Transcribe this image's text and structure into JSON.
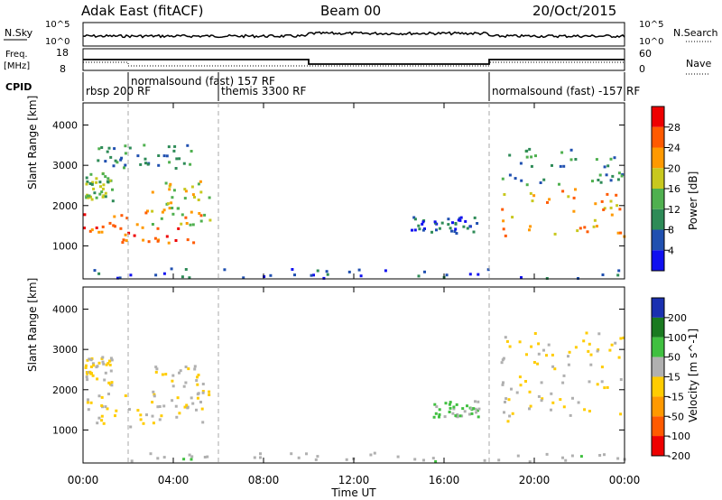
{
  "header": {
    "station": "Adak East (fitACF)",
    "beam": "Beam 00",
    "date": "20/Oct/2015"
  },
  "top_panels": {
    "nsky_label": "N.Sky",
    "nsearch_label": "N.Search",
    "nsky_ticks": [
      "10^5",
      "10^0"
    ],
    "nsky_right_ticks": [
      "10^5",
      "10^0"
    ],
    "freq_label_line1": "Freq.",
    "freq_label_line2": "[MHz]",
    "freq_ticks": [
      "18",
      "8"
    ],
    "nave_label": "Nave",
    "nave_ticks": [
      "60",
      "0"
    ],
    "cpid_label": "CPID",
    "cpid_segments": [
      {
        "start": 0,
        "label": "rbsp 200 RF"
      },
      {
        "start": 2,
        "label": "normalsound (fast) 157 RF"
      },
      {
        "start": 6,
        "label": "themis 3300 RF"
      },
      {
        "start": 18,
        "label": "normalsound (fast) -157 RF"
      }
    ]
  },
  "time_axis": {
    "label": "Time UT",
    "ticks": [
      "00:00",
      "04:00",
      "08:00",
      "12:00",
      "16:00",
      "20:00",
      "00:00"
    ]
  },
  "chart_data": [
    {
      "type": "heatmap",
      "title": "Power",
      "ylabel": "Slant Range [km]",
      "xlabel": "",
      "xlim": [
        0,
        24
      ],
      "ylim": [
        180,
        4550
      ],
      "yticks": [
        1000,
        2000,
        3000,
        4000
      ],
      "colorbar_label": "Power [dB]",
      "colorbar_ticks": [
        4,
        8,
        12,
        16,
        20,
        24,
        28
      ],
      "colorbar_range": [
        0,
        32
      ],
      "colors": [
        "#1010f0",
        "#2050b0",
        "#2e8b57",
        "#4fb04f",
        "#c8c81e",
        "#ff9900",
        "#ff5a00",
        "#ee0000"
      ],
      "echo_regions": [
        {
          "t": [
            0,
            5.3
          ],
          "r": [
            1050,
            1900
          ],
          "value": 26
        },
        {
          "t": [
            3.0,
            5.6
          ],
          "r": [
            1500,
            2600
          ],
          "value": 18
        },
        {
          "t": [
            0,
            1.3
          ],
          "r": [
            2100,
            2800
          ],
          "value": 14
        },
        {
          "t": [
            0.5,
            5.0
          ],
          "r": [
            2900,
            3500
          ],
          "value": 10
        },
        {
          "t": [
            18.5,
            24
          ],
          "r": [
            1200,
            2400
          ],
          "value": 22
        },
        {
          "t": [
            18.5,
            24
          ],
          "r": [
            2500,
            3400
          ],
          "value": 11
        },
        {
          "t": [
            14.5,
            17.5
          ],
          "r": [
            1300,
            1700
          ],
          "value": 7
        },
        {
          "t": [
            0,
            24
          ],
          "r": [
            180,
            420
          ],
          "value": 6
        }
      ]
    },
    {
      "type": "heatmap",
      "title": "Velocity",
      "ylabel": "Slant Range [km]",
      "xlabel": "Time UT",
      "xlim": [
        0,
        24
      ],
      "ylim": [
        180,
        4550
      ],
      "yticks": [
        1000,
        2000,
        3000,
        4000
      ],
      "colorbar_label": "Velocity [m s^-1]",
      "colorbar_ticks": [
        200,
        100,
        50,
        15,
        -15,
        -50,
        -100,
        -200
      ],
      "colorbar_range": [
        -250,
        250
      ],
      "colors": [
        "#1a30b0",
        "#1a7a20",
        "#40c040",
        "#b0b0b0",
        "#ffcc00",
        "#ff9900",
        "#ff5a00",
        "#ee0000"
      ],
      "echo_regions": [
        {
          "t": [
            0,
            5.3
          ],
          "r": [
            1050,
            1900
          ],
          "value": 0
        },
        {
          "t": [
            3.0,
            5.6
          ],
          "r": [
            1500,
            2600
          ],
          "value": 5
        },
        {
          "t": [
            0,
            1.3
          ],
          "r": [
            2100,
            2800
          ],
          "value": -5
        },
        {
          "t": [
            18.5,
            24
          ],
          "r": [
            1200,
            2400
          ],
          "value": 10
        },
        {
          "t": [
            18.5,
            24
          ],
          "r": [
            2500,
            3400
          ],
          "value": -10
        },
        {
          "t": [
            15.5,
            17.5
          ],
          "r": [
            1300,
            1700
          ],
          "value": 60
        },
        {
          "t": [
            0,
            24
          ],
          "r": [
            180,
            420
          ],
          "value": 40
        }
      ]
    }
  ]
}
